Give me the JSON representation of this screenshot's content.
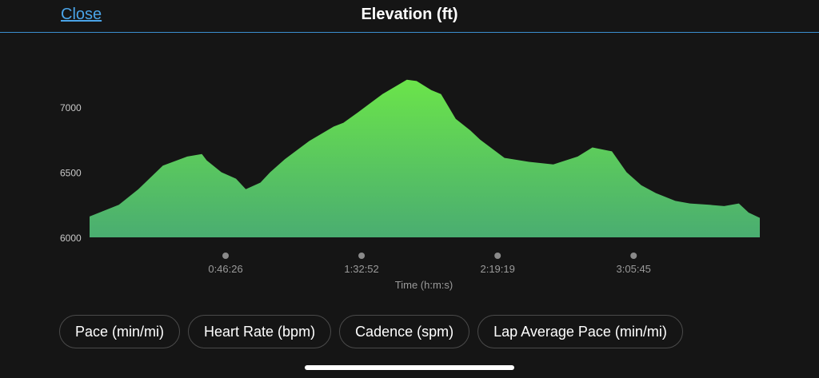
{
  "header": {
    "close_label": "Close",
    "title": "Elevation (ft)"
  },
  "chart_data": {
    "type": "area",
    "title": "Elevation (ft)",
    "xlabel": "Time (h:m:s)",
    "ylabel": "",
    "ylim": [
      6000,
      7250
    ],
    "xlim_seconds": [
      0,
      13730
    ],
    "yticks": [
      7000,
      6500,
      6000
    ],
    "xticks": [
      {
        "value": 2786,
        "label": "0:46:26"
      },
      {
        "value": 5572,
        "label": "1:32:52"
      },
      {
        "value": 8359,
        "label": "2:19:19"
      },
      {
        "value": 11145,
        "label": "3:05:45"
      }
    ],
    "series": [
      {
        "x": [
          0,
          400,
          600,
          1000,
          1500,
          2000,
          2300,
          2400,
          2700,
          3000,
          3200,
          3500,
          3700,
          4000,
          4500,
          5000,
          5200,
          5500,
          6000,
          6500,
          6700,
          7000,
          7200,
          7500,
          7800,
          8000,
          8500,
          9000,
          9500,
          10000,
          10300,
          10700,
          11000,
          11300,
          11600,
          12000,
          12300,
          12700,
          13000,
          13300,
          13500,
          13730
        ],
        "y": [
          6160,
          6220,
          6250,
          6370,
          6550,
          6620,
          6640,
          6590,
          6500,
          6450,
          6370,
          6420,
          6500,
          6600,
          6740,
          6850,
          6880,
          6960,
          7100,
          7210,
          7200,
          7130,
          7100,
          6910,
          6820,
          6750,
          6610,
          6580,
          6560,
          6620,
          6690,
          6660,
          6500,
          6400,
          6340,
          6280,
          6260,
          6250,
          6240,
          6260,
          6190,
          6150
        ]
      }
    ],
    "colors": {
      "top": "#6be44a",
      "bottom": "#4aad71"
    }
  },
  "metric_buttons": [
    {
      "label": "Pace (min/mi)"
    },
    {
      "label": "Heart Rate (bpm)"
    },
    {
      "label": "Cadence (spm)"
    },
    {
      "label": "Lap Average Pace (min/mi)"
    }
  ]
}
